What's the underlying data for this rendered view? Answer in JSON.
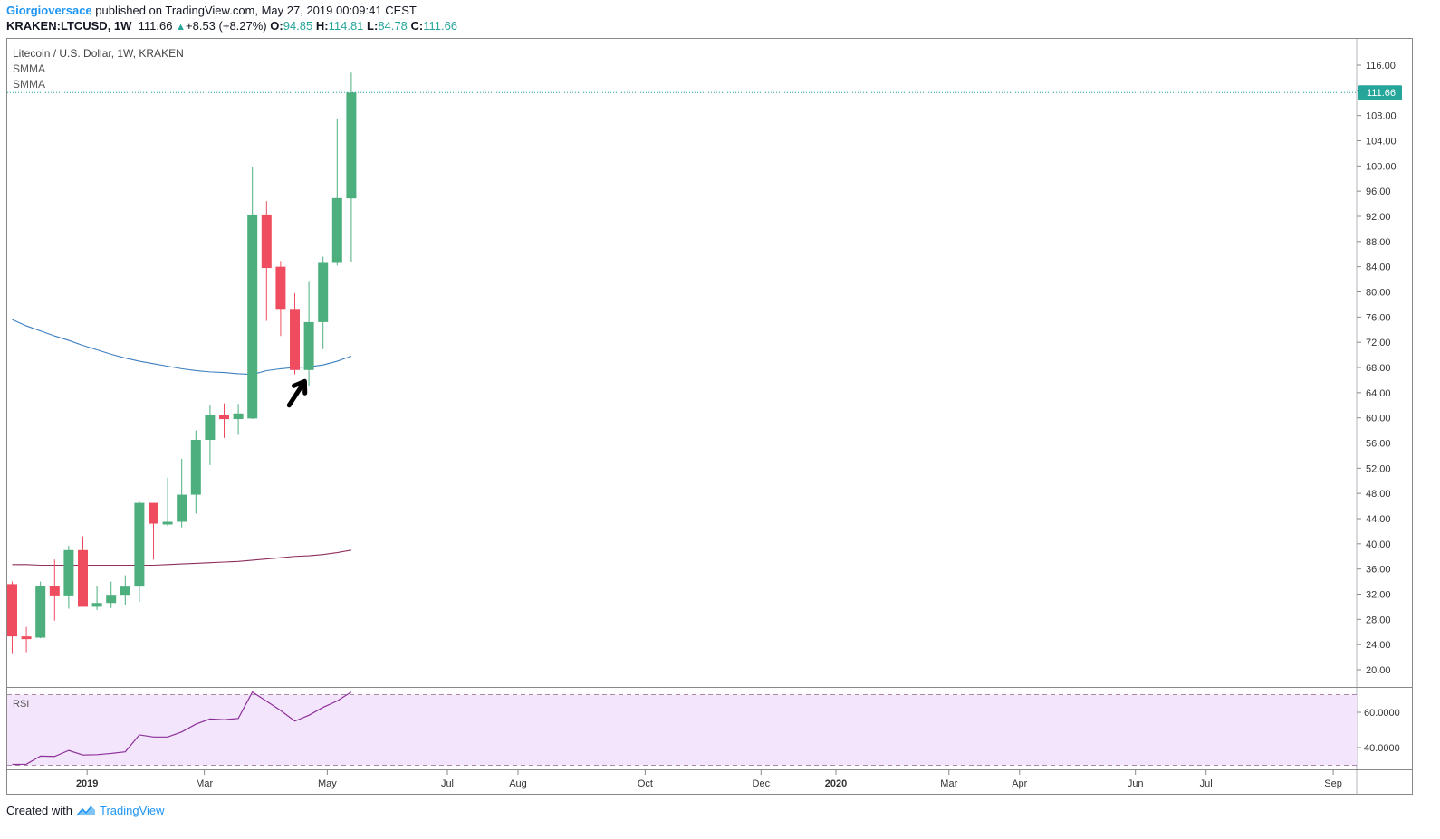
{
  "header": {
    "author": "Giorgioversace",
    "published_text": "published on TradingView.com, May 27, 2019 00:09:41 CEST",
    "symbol": "KRAKEN:LTCUSD, 1W",
    "last": "111.66",
    "change_icon": "up-triangle-icon",
    "change": "+8.53 (+8.27%)",
    "o_label": "O:",
    "o_value": "94.85",
    "h_label": "H:",
    "h_value": "114.81",
    "l_label": "L:",
    "l_value": "84.78",
    "c_label": "C:",
    "c_value": "111.66"
  },
  "legend": {
    "title": "Litecoin / U.S. Dollar, 1W, KRAKEN",
    "indicator1": "SMMA",
    "indicator2": "SMMA"
  },
  "price_label": "111.66",
  "rsi_label": "RSI",
  "footer": {
    "created_with": "Created with",
    "brand": "TradingView",
    "logo_icon": "tradingview-logo-icon"
  },
  "colors": {
    "bull": "#4caf7d",
    "bear": "#ef4d5f",
    "smma_fast": "#3d7fc1",
    "smma_slow": "#8e2f5e",
    "rsi_line": "#8c2f99",
    "rsi_band": "#f3e5fb",
    "price_line": "#26a69a"
  },
  "chart_data": {
    "type": "candlestick",
    "title": "Litecoin / U.S. Dollar, 1W, KRAKEN",
    "interval": "1W",
    "price_axis": {
      "min": 18,
      "max": 118,
      "ticks": [
        "116.00",
        "112.00",
        "108.00",
        "104.00",
        "100.00",
        "96.00",
        "92.00",
        "88.00",
        "84.00",
        "80.00",
        "76.00",
        "72.00",
        "68.00",
        "64.00",
        "60.00",
        "56.00",
        "52.00",
        "48.00",
        "44.00",
        "40.00",
        "36.00",
        "32.00",
        "28.00",
        "24.00",
        "20.00"
      ],
      "last_price": 111.66
    },
    "time_axis": {
      "labels": [
        {
          "text": "2019",
          "bar": 5.3,
          "bold": true
        },
        {
          "text": "Mar",
          "bar": 13.6,
          "bold": false
        },
        {
          "text": "May",
          "bar": 22.3,
          "bold": false
        },
        {
          "text": "Jul",
          "bar": 30.8,
          "bold": false
        },
        {
          "text": "Aug",
          "bar": 35.8,
          "bold": false
        },
        {
          "text": "Oct",
          "bar": 44.8,
          "bold": false
        },
        {
          "text": "Dec",
          "bar": 53.0,
          "bold": false
        },
        {
          "text": "2020",
          "bar": 58.3,
          "bold": true
        },
        {
          "text": "Mar",
          "bar": 66.3,
          "bold": false
        },
        {
          "text": "Apr",
          "bar": 71.3,
          "bold": false
        },
        {
          "text": "Jun",
          "bar": 79.5,
          "bold": false
        },
        {
          "text": "Jul",
          "bar": 84.5,
          "bold": false
        },
        {
          "text": "Sep",
          "bar": 93.5,
          "bold": false
        }
      ]
    },
    "candles": [
      {
        "o": 33.6,
        "h": 34.0,
        "l": 22.5,
        "c": 25.3
      },
      {
        "o": 25.3,
        "h": 26.8,
        "l": 22.8,
        "c": 25.1
      },
      {
        "o": 25.1,
        "h": 34.0,
        "l": 25.0,
        "c": 33.3
      },
      {
        "o": 33.3,
        "h": 37.5,
        "l": 27.8,
        "c": 31.8
      },
      {
        "o": 31.8,
        "h": 39.7,
        "l": 29.7,
        "c": 39.0
      },
      {
        "o": 39.0,
        "h": 41.2,
        "l": 30.0,
        "c": 30.0
      },
      {
        "o": 30.0,
        "h": 33.3,
        "l": 29.5,
        "c": 30.6
      },
      {
        "o": 30.6,
        "h": 34.0,
        "l": 29.8,
        "c": 31.9
      },
      {
        "o": 31.9,
        "h": 35.0,
        "l": 30.3,
        "c": 33.2
      },
      {
        "o": 33.2,
        "h": 46.8,
        "l": 30.8,
        "c": 46.5
      },
      {
        "o": 46.5,
        "h": 46.5,
        "l": 37.5,
        "c": 43.2
      },
      {
        "o": 43.2,
        "h": 50.5,
        "l": 42.8,
        "c": 43.5
      },
      {
        "o": 43.5,
        "h": 53.5,
        "l": 42.6,
        "c": 47.8
      },
      {
        "o": 47.8,
        "h": 58.0,
        "l": 44.8,
        "c": 56.5
      },
      {
        "o": 56.5,
        "h": 62.0,
        "l": 52.5,
        "c": 60.5
      },
      {
        "o": 60.5,
        "h": 62.3,
        "l": 56.8,
        "c": 59.8
      },
      {
        "o": 59.8,
        "h": 62.2,
        "l": 57.3,
        "c": 60.7
      },
      {
        "o": 59.9,
        "h": 99.8,
        "l": 59.8,
        "c": 92.3
      },
      {
        "o": 92.3,
        "h": 94.4,
        "l": 75.4,
        "c": 83.8
      },
      {
        "o": 84.0,
        "h": 84.9,
        "l": 73.0,
        "c": 77.3
      },
      {
        "o": 77.3,
        "h": 79.8,
        "l": 66.9,
        "c": 67.6
      },
      {
        "o": 67.6,
        "h": 81.6,
        "l": 65.0,
        "c": 75.2
      },
      {
        "o": 75.2,
        "h": 85.6,
        "l": 70.9,
        "c": 84.6
      },
      {
        "o": 84.6,
        "h": 107.5,
        "l": 84.2,
        "c": 94.9
      },
      {
        "o": 94.85,
        "h": 114.81,
        "l": 84.78,
        "c": 111.66
      }
    ],
    "series": [
      {
        "name": "SMMA",
        "values": [
          75.6,
          74.6,
          73.8,
          73.0,
          72.3,
          71.5,
          70.8,
          70.1,
          69.5,
          69.0,
          68.6,
          68.2,
          67.8,
          67.5,
          67.3,
          67.2,
          67.0,
          66.9,
          67.5,
          67.8,
          68.0,
          68.1,
          68.4,
          69.0,
          69.8
        ]
      },
      {
        "name": "SMMA",
        "values": [
          36.7,
          36.7,
          36.6,
          36.6,
          36.6,
          36.6,
          36.6,
          36.6,
          36.6,
          36.6,
          36.6,
          36.7,
          36.8,
          36.9,
          37.0,
          37.1,
          37.2,
          37.4,
          37.6,
          37.8,
          38.0,
          38.1,
          38.3,
          38.6,
          39.0
        ]
      }
    ],
    "rsi": {
      "ticks": [
        "60.0000",
        "40.0000"
      ],
      "upper_band": 70,
      "lower_band": 30,
      "values": [
        30.5,
        30.6,
        35.2,
        35.0,
        38.4,
        35.8,
        36.0,
        36.7,
        37.6,
        47.2,
        46.0,
        46.0,
        48.9,
        53.3,
        56.2,
        55.8,
        56.5,
        71.5,
        66.3,
        61.0,
        55.0,
        58.3,
        62.8,
        66.4,
        71.5
      ]
    },
    "annotations": [
      {
        "type": "arrow",
        "from_bar": 19.6,
        "from_price": 62.0,
        "to_bar": 20.7,
        "to_price": 65.8
      }
    ]
  }
}
